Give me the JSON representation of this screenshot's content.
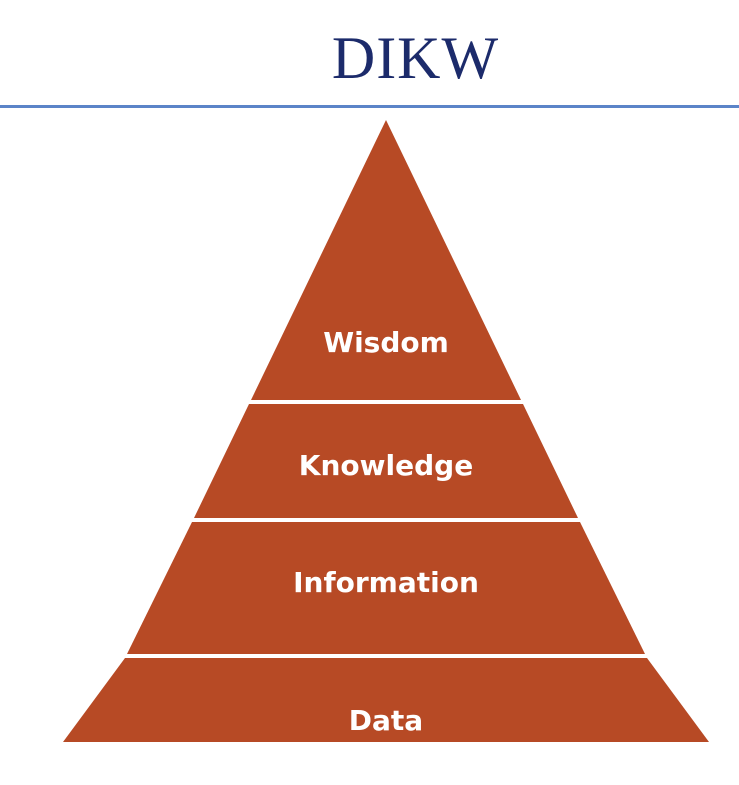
{
  "title": "DIKW",
  "colors": {
    "title_text": "#1c2b6b",
    "rule": "#5b84c8",
    "pyramid_fill": "#b74a25",
    "separator": "#ffffff",
    "label_text": "#ffffff"
  },
  "pyramid": {
    "levels_top_to_bottom": [
      {
        "label": "Wisdom"
      },
      {
        "label": "Knowledge"
      },
      {
        "label": "Information"
      },
      {
        "label": "Data"
      }
    ]
  }
}
